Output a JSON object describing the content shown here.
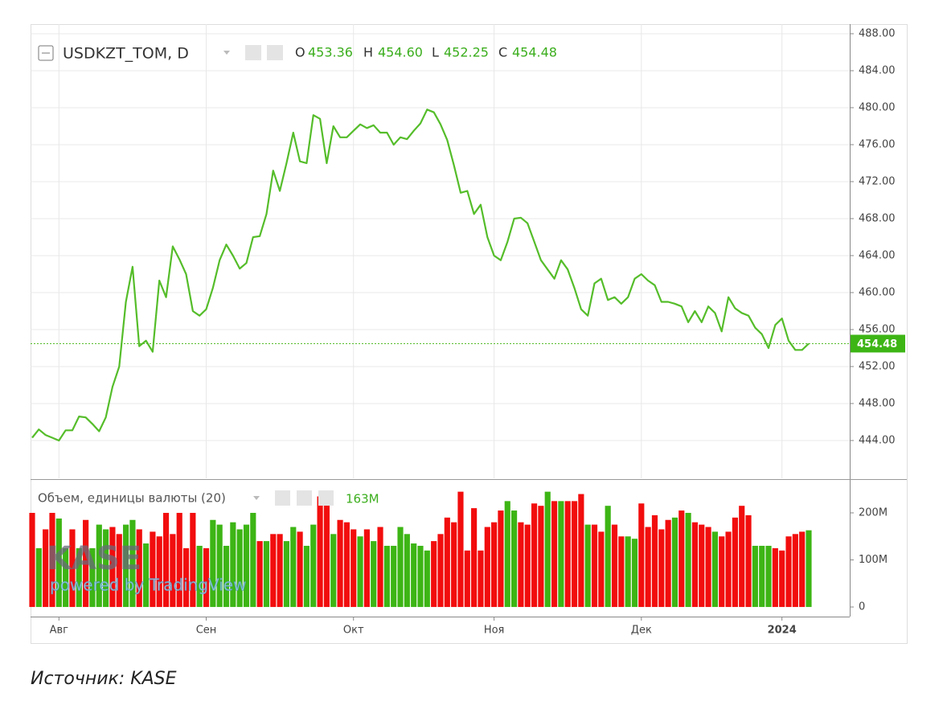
{
  "chart_data": [
    {
      "type": "line",
      "title": "USDKZT_TOM, D",
      "color": "#55bd2a",
      "ohlc": [
        {
          "name": "O",
          "value": "453.36"
        },
        {
          "name": "H",
          "value": "454.60"
        },
        {
          "name": "L",
          "value": "452.25"
        },
        {
          "name": "C",
          "value": "454.48"
        }
      ],
      "values": [
        444.3,
        445.2,
        444.6,
        444.3,
        444.0,
        445.1,
        445.1,
        446.6,
        446.5,
        445.8,
        445.0,
        446.5,
        449.8,
        452.0,
        459.0,
        462.8,
        454.2,
        454.8,
        453.6,
        461.3,
        459.5,
        465.0,
        463.6,
        462.0,
        458.0,
        457.5,
        458.2,
        460.5,
        463.5,
        465.2,
        464.0,
        462.6,
        463.2,
        466.0,
        466.1,
        468.5,
        473.2,
        471.0,
        474.0,
        477.3,
        474.2,
        474.0,
        479.2,
        478.8,
        474.0,
        478.0,
        476.8,
        476.8,
        477.5,
        478.2,
        477.8,
        478.1,
        477.3,
        477.3,
        476.0,
        476.8,
        476.6,
        477.5,
        478.3,
        479.8,
        479.5,
        478.2,
        476.5,
        473.8,
        470.8,
        471.0,
        468.5,
        469.5,
        466.0,
        464.0,
        463.5,
        465.5,
        468.0,
        468.1,
        467.5,
        465.5,
        463.5,
        462.5,
        461.5,
        463.5,
        462.5,
        460.5,
        458.2,
        457.5,
        461.0,
        461.5,
        459.2,
        459.5,
        458.8,
        459.5,
        461.5,
        462.0,
        461.3,
        460.8,
        459.0,
        459.0,
        458.8,
        458.5,
        456.8,
        458.0,
        456.8,
        458.5,
        457.8,
        455.8,
        459.5,
        458.3,
        457.8,
        457.5,
        456.2,
        455.5,
        454.0,
        456.5,
        457.2,
        454.8,
        453.8,
        453.8,
        454.48
      ],
      "ylim": [
        439.91,
        489.04
      ],
      "yticks": [
        {
          "value": 444,
          "label": "444.00"
        },
        {
          "value": 448,
          "label": "448.00"
        },
        {
          "value": 452,
          "label": "452.00"
        },
        {
          "value": 456,
          "label": "456.00"
        },
        {
          "value": 460,
          "label": "460.00"
        },
        {
          "value": 464,
          "label": "464.00"
        },
        {
          "value": 468,
          "label": "468.00"
        },
        {
          "value": 472,
          "label": "472.00"
        },
        {
          "value": 476,
          "label": "476.00"
        },
        {
          "value": 480,
          "label": "480.00"
        },
        {
          "value": 484,
          "label": "484.00"
        },
        {
          "value": 488,
          "label": "488.00"
        }
      ],
      "grid": true
    },
    {
      "type": "bar",
      "title": "Объем, единицы валюты (20)",
      "last_value": {
        "value": 163,
        "label": "163M"
      },
      "categories": [
        null,
        null,
        null,
        null,
        "Авг",
        null,
        null,
        null,
        null,
        null,
        null,
        null,
        null,
        null,
        null,
        null,
        null,
        null,
        null,
        null,
        null,
        null,
        null,
        null,
        null,
        null,
        "Сен",
        null,
        null,
        null,
        null,
        null,
        null,
        null,
        null,
        null,
        null,
        null,
        null,
        null,
        null,
        null,
        null,
        null,
        null,
        null,
        null,
        null,
        "Окт",
        null,
        null,
        null,
        null,
        null,
        null,
        null,
        null,
        null,
        null,
        null,
        null,
        null,
        null,
        null,
        null,
        null,
        null,
        null,
        null,
        "Ноя",
        null,
        null,
        null,
        null,
        null,
        null,
        null,
        null,
        null,
        null,
        null,
        null,
        null,
        null,
        null,
        null,
        null,
        null,
        null,
        null,
        null,
        "Дек",
        null,
        null,
        null,
        null,
        null,
        null,
        null,
        null,
        null,
        null,
        null,
        null,
        null,
        null,
        null,
        null,
        null,
        null,
        null,
        null,
        "2024",
        null,
        null,
        null,
        null
      ],
      "values": [
        200,
        125,
        165,
        200,
        188,
        125,
        165,
        125,
        185,
        125,
        175,
        165,
        170,
        155,
        175,
        185,
        165,
        135,
        160,
        150,
        200,
        155,
        200,
        125,
        200,
        130,
        125,
        185,
        175,
        130,
        180,
        165,
        175,
        200,
        140,
        140,
        155,
        155,
        140,
        170,
        160,
        130,
        175,
        235,
        240,
        155,
        185,
        180,
        165,
        150,
        165,
        140,
        170,
        130,
        130,
        170,
        155,
        135,
        130,
        120,
        140,
        155,
        190,
        180,
        245,
        120,
        210,
        120,
        170,
        180,
        205,
        225,
        205,
        180,
        175,
        220,
        215,
        245,
        225,
        225,
        225,
        225,
        240,
        175,
        175,
        160,
        215,
        175,
        150,
        150,
        145,
        220,
        170,
        195,
        165,
        185,
        190,
        205,
        200,
        180,
        175,
        170,
        160,
        150,
        160,
        190,
        215,
        195,
        130,
        130,
        130,
        125,
        120,
        150,
        155,
        160,
        163
      ],
      "colors": [
        "#f20d0d",
        "#3db515",
        "#f20d0d",
        "#f20d0d",
        "#3db515",
        "#3db515",
        "#f20d0d",
        "#3db515",
        "#f20d0d",
        "#3db515",
        "#3db515",
        "#3db515",
        "#f20d0d",
        "#f20d0d",
        "#3db515",
        "#3db515",
        "#f20d0d",
        "#3db515",
        "#f20d0d",
        "#f20d0d",
        "#f20d0d",
        "#f20d0d",
        "#f20d0d",
        "#f20d0d",
        "#f20d0d",
        "#3db515",
        "#f20d0d",
        "#3db515",
        "#3db515",
        "#3db515",
        "#3db515",
        "#3db515",
        "#3db515",
        "#3db515",
        "#f20d0d",
        "#3db515",
        "#f20d0d",
        "#f20d0d",
        "#3db515",
        "#3db515",
        "#f20d0d",
        "#3db515",
        "#3db515",
        "#f20d0d",
        "#f20d0d",
        "#3db515",
        "#f20d0d",
        "#f20d0d",
        "#f20d0d",
        "#3db515",
        "#f20d0d",
        "#3db515",
        "#f20d0d",
        "#3db515",
        "#3db515",
        "#3db515",
        "#3db515",
        "#3db515",
        "#3db515",
        "#3db515",
        "#f20d0d",
        "#f20d0d",
        "#f20d0d",
        "#f20d0d",
        "#f20d0d",
        "#f20d0d",
        "#f20d0d",
        "#f20d0d",
        "#f20d0d",
        "#f20d0d",
        "#f20d0d",
        "#3db515",
        "#3db515",
        "#f20d0d",
        "#f20d0d",
        "#f20d0d",
        "#f20d0d",
        "#3db515",
        "#f20d0d",
        "#3db515",
        "#f20d0d",
        "#f20d0d",
        "#f20d0d",
        "#3db515",
        "#f20d0d",
        "#f20d0d",
        "#3db515",
        "#f20d0d",
        "#f20d0d",
        "#3db515",
        "#3db515",
        "#f20d0d",
        "#f20d0d",
        "#f20d0d",
        "#f20d0d",
        "#f20d0d",
        "#3db515",
        "#f20d0d",
        "#3db515",
        "#f20d0d",
        "#f20d0d",
        "#f20d0d",
        "#3db515",
        "#f20d0d",
        "#f20d0d",
        "#f20d0d",
        "#f20d0d",
        "#f20d0d",
        "#3db515",
        "#3db515",
        "#3db515",
        "#f20d0d",
        "#f20d0d",
        "#f20d0d",
        "#f20d0d",
        "#f20d0d",
        "#3db515"
      ],
      "ylim": [
        -17,
        270
      ],
      "yticks": [
        0,
        {
          "value": 100,
          "label": "100M"
        },
        {
          "value": 200,
          "label": "200M"
        }
      ]
    }
  ],
  "watermark": {
    "logo": "KASE",
    "text": "powered by TradingView"
  },
  "footer": "Источник: KASE"
}
